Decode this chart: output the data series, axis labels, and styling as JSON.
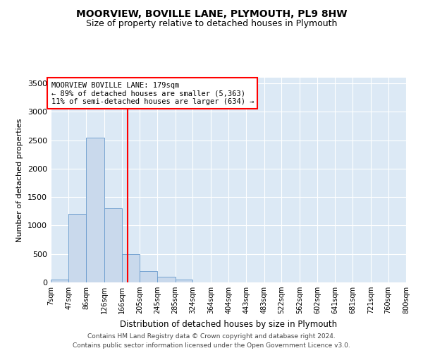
{
  "title": "MOORVIEW, BOVILLE LANE, PLYMOUTH, PL9 8HW",
  "subtitle": "Size of property relative to detached houses in Plymouth",
  "xlabel": "Distribution of detached houses by size in Plymouth",
  "ylabel": "Number of detached properties",
  "footer1": "Contains HM Land Registry data © Crown copyright and database right 2024.",
  "footer2": "Contains public sector information licensed under the Open Government Licence v3.0.",
  "annotation_line1": "MOORVIEW BOVILLE LANE: 179sqm",
  "annotation_line2": "← 89% of detached houses are smaller (5,363)",
  "annotation_line3": "11% of semi-detached houses are larger (634) →",
  "bar_color": "#c9d9ec",
  "bar_edge_color": "#6699cc",
  "red_line_x": 179,
  "bin_edges": [
    7,
    47,
    86,
    126,
    166,
    205,
    245,
    285,
    324,
    364,
    404,
    443,
    483,
    522,
    562,
    602,
    641,
    681,
    721,
    760,
    800
  ],
  "bar_heights": [
    50,
    1200,
    2550,
    1300,
    500,
    200,
    100,
    50,
    0,
    0,
    0,
    0,
    0,
    0,
    0,
    0,
    0,
    0,
    0,
    0
  ],
  "ylim": [
    0,
    3600
  ],
  "yticks": [
    0,
    500,
    1000,
    1500,
    2000,
    2500,
    3000,
    3500
  ],
  "plot_bg_color": "#dce9f5"
}
